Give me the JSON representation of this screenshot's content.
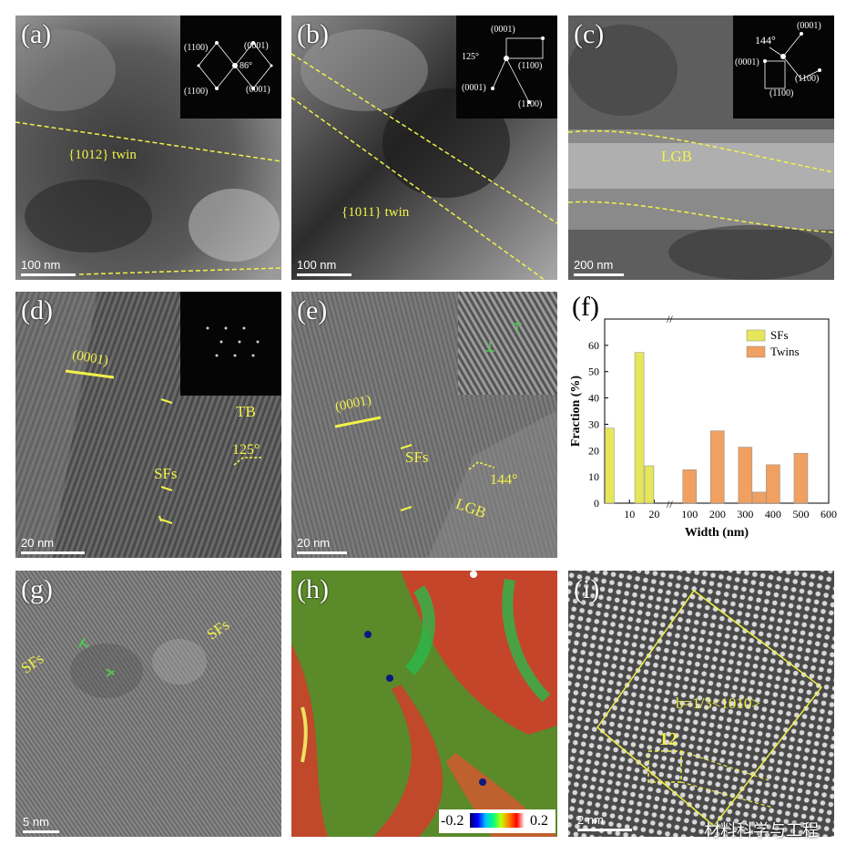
{
  "panels": {
    "a": {
      "label": "(a)",
      "scale": "100 nm",
      "twin": "{1012} twin",
      "twin_bar": "1",
      "spots": [
        "(1100)",
        "(0001)",
        "(1100)",
        "(0001)"
      ],
      "angle": "86°"
    },
    "b": {
      "label": "(b)",
      "scale": "100 nm",
      "twin": "{1011} twin",
      "spots": [
        "(0001)",
        "(1100)",
        "(0001)",
        "(1100)"
      ],
      "angle": "125°"
    },
    "c": {
      "label": "(c)",
      "scale": "200 nm",
      "lgb": "LGB",
      "spots": [
        "(0001)",
        "(0001)",
        "(1100)",
        "(1100)"
      ],
      "angle": "144°"
    },
    "d": {
      "label": "(d)",
      "scale": "20 nm",
      "plane": "(0001)",
      "tb": "TB",
      "sfs": "SFs",
      "angle": "125°"
    },
    "e": {
      "label": "(e)",
      "scale": "20 nm",
      "plane": "(0001)",
      "sfs": "SFs",
      "lgb": "LGB",
      "angle": "144°"
    },
    "g": {
      "label": "(g)",
      "scale": "5 nm",
      "sfs_left": "SFs",
      "sfs_right": "SFs"
    },
    "h": {
      "label": "(h)",
      "cbar_min": "-0.2",
      "cbar_max": "0.2"
    },
    "i": {
      "label": "(i)",
      "scale": "2 nm",
      "burgers": "b=1/3<1010>",
      "circuit": "12"
    }
  },
  "chart_data": {
    "type": "bar",
    "panel_label": "(f)",
    "xlabel": "Width (nm)",
    "ylabel": "Fraction (%)",
    "ylim": [
      0,
      70
    ],
    "yticks": [
      0,
      10,
      20,
      30,
      40,
      50,
      60
    ],
    "xticks_left": [
      "10",
      "20"
    ],
    "xticks_right": [
      "100",
      "200",
      "300",
      "400",
      "500",
      "600"
    ],
    "series": [
      {
        "name": "SFs",
        "color": "#e6e65a",
        "x": [
          2,
          14,
          18
        ],
        "values": [
          28.5,
          57.3,
          14.2
        ]
      },
      {
        "name": "Twins",
        "color": "#f0a060",
        "x": [
          100,
          200,
          300,
          350,
          400,
          500
        ],
        "values": [
          12.7,
          27.5,
          21.3,
          4.2,
          14.6,
          19.0
        ]
      }
    ]
  },
  "watermark": "材料科学与工程"
}
